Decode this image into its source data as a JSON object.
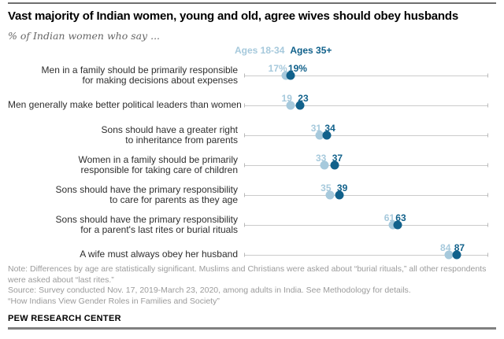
{
  "header": {
    "title": "Vast majority of Indian women, young and old, agree wives should obey husbands",
    "subtitle": "% of Indian women who say ..."
  },
  "chart_data": {
    "type": "dot-plot",
    "title": "Vast majority of Indian women, young and old, agree wives should obey husbands",
    "subtitle": "% of Indian women who say ...",
    "xlim": [
      0,
      100
    ],
    "legend_position": "top",
    "grid": false,
    "series": [
      {
        "name": "Ages 18-34",
        "color": "#a6c9dc"
      },
      {
        "name": "Ages 35+",
        "color": "#11618b"
      }
    ],
    "rows": [
      {
        "label_lines": [
          "Men in a family should be primarily responsible",
          "for making decisions about expenses"
        ],
        "values": [
          17,
          19
        ],
        "value_labels": [
          "17%",
          "19%"
        ]
      },
      {
        "label_lines": [
          "Men generally make better political leaders than women"
        ],
        "values": [
          19,
          23
        ],
        "value_labels": [
          "19",
          "23"
        ]
      },
      {
        "label_lines": [
          "Sons should have a greater right",
          "to inheritance from parents"
        ],
        "values": [
          31,
          34
        ],
        "value_labels": [
          "31",
          "34"
        ]
      },
      {
        "label_lines": [
          "Women in a family should be primarily",
          "responsible for taking care of children"
        ],
        "values": [
          33,
          37
        ],
        "value_labels": [
          "33",
          "37"
        ]
      },
      {
        "label_lines": [
          "Sons should have the primary responsibility",
          "to care for parents as they age"
        ],
        "values": [
          35,
          39
        ],
        "value_labels": [
          "35",
          "39"
        ]
      },
      {
        "label_lines": [
          "Sons should have the primary responsibility",
          "for a parent's last rites or burial rituals"
        ],
        "values": [
          61,
          63
        ],
        "value_labels": [
          "61",
          "63"
        ]
      },
      {
        "label_lines": [
          "A wife must always obey her husband"
        ],
        "values": [
          84,
          87
        ],
        "value_labels": [
          "84",
          "87"
        ]
      }
    ],
    "line_color": "#cbcbcb"
  },
  "footer": {
    "note": "Note: Differences by age are statistically significant. Muslims and Christians were asked about “burial rituals,” all other respondents were asked about “last rites.”",
    "source": "Source: Survey conducted Nov. 17, 2019-March 23, 2020, among adults in India. See Methodology for details.",
    "report_title": "“How Indians View Gender Roles in Families and Society”",
    "brand": "PEW RESEARCH CENTER"
  }
}
